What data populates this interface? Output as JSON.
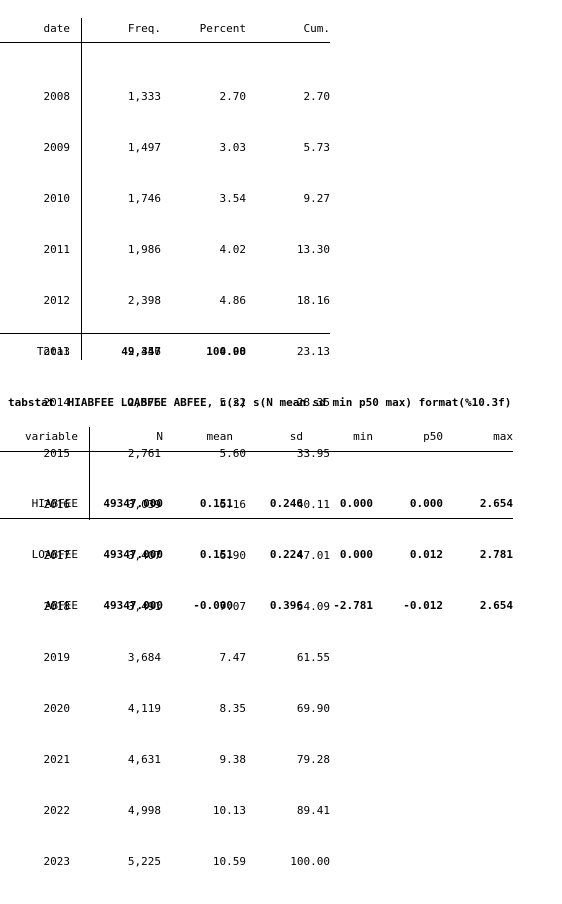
{
  "tab1": {
    "headers": {
      "var": "date",
      "freq": "Freq.",
      "pct": "Percent",
      "cum": "Cum."
    },
    "rows": [
      {
        "year": "2008",
        "freq": "1,333",
        "pct": "2.70",
        "cum": "2.70"
      },
      {
        "year": "2009",
        "freq": "1,497",
        "pct": "3.03",
        "cum": "5.73"
      },
      {
        "year": "2010",
        "freq": "1,746",
        "pct": "3.54",
        "cum": "9.27"
      },
      {
        "year": "2011",
        "freq": "1,986",
        "pct": "4.02",
        "cum": "13.30"
      },
      {
        "year": "2012",
        "freq": "2,398",
        "pct": "4.86",
        "cum": "18.16"
      },
      {
        "year": "2013",
        "freq": "2,456",
        "pct": "4.98",
        "cum": "23.13"
      },
      {
        "year": "2014",
        "freq": "2,576",
        "pct": "5.22",
        "cum": "28.35"
      },
      {
        "year": "2015",
        "freq": "2,761",
        "pct": "5.60",
        "cum": "33.95"
      },
      {
        "year": "2016",
        "freq": "3,039",
        "pct": "6.16",
        "cum": "40.11"
      },
      {
        "year": "2017",
        "freq": "3,407",
        "pct": "6.90",
        "cum": "47.01"
      },
      {
        "year": "2018",
        "freq": "3,491",
        "pct": "7.07",
        "cum": "54.09"
      },
      {
        "year": "2019",
        "freq": "3,684",
        "pct": "7.47",
        "cum": "61.55"
      },
      {
        "year": "2020",
        "freq": "4,119",
        "pct": "8.35",
        "cum": "69.90"
      },
      {
        "year": "2021",
        "freq": "4,631",
        "pct": "9.38",
        "cum": "79.28"
      },
      {
        "year": "2022",
        "freq": "4,998",
        "pct": "10.13",
        "cum": "89.41"
      },
      {
        "year": "2023",
        "freq": "5,225",
        "pct": "10.59",
        "cum": "100.00"
      }
    ],
    "total": {
      "label": "Total",
      "freq": "49,347",
      "pct": "100.00"
    }
  },
  "command": "tabstat  HIABFEE LOABFEE ABFEE, c(s) s(N mean sd min p50 max) format(%10.3f)",
  "tab2": {
    "headers": {
      "var": "variable",
      "n": "N",
      "mean": "mean",
      "sd": "sd",
      "min": "min",
      "p50": "p50",
      "max": "max"
    },
    "rows": [
      {
        "var": "HIABFEE",
        "n": "49347.000",
        "mean": "0.151",
        "sd": "0.246",
        "min": "0.000",
        "p50": "0.000",
        "max": "2.654"
      },
      {
        "var": "LOABFEE",
        "n": "49347.000",
        "mean": "0.151",
        "sd": "0.224",
        "min": "0.000",
        "p50": "0.012",
        "max": "2.781"
      },
      {
        "var": "ABFEE",
        "n": "49347.000",
        "mean": "-0.000",
        "sd": "0.396",
        "min": "-2.781",
        "p50": "-0.012",
        "max": "2.654"
      }
    ]
  }
}
